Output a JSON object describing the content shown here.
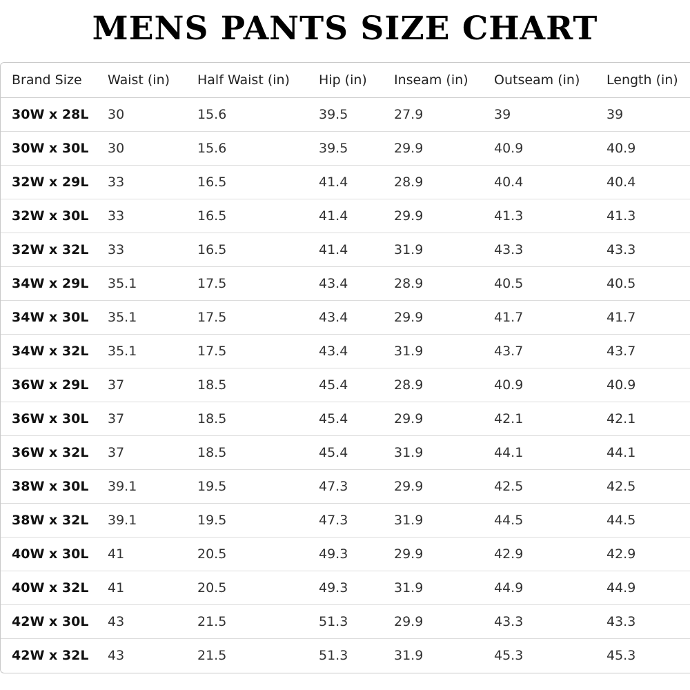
{
  "title": "MENS PANTS SIZE CHART",
  "table": {
    "headers": [
      "Brand Size",
      "Waist (in)",
      "Half Waist (in)",
      "Hip (in)",
      "Inseam (in)",
      "Outseam (in)",
      "Length (in)"
    ],
    "rows": [
      [
        "30W x 28L",
        "30",
        "15.6",
        "39.5",
        "27.9",
        "39",
        "39"
      ],
      [
        "30W x 30L",
        "30",
        "15.6",
        "39.5",
        "29.9",
        "40.9",
        "40.9"
      ],
      [
        "32W x 29L",
        "33",
        "16.5",
        "41.4",
        "28.9",
        "40.4",
        "40.4"
      ],
      [
        "32W x 30L",
        "33",
        "16.5",
        "41.4",
        "29.9",
        "41.3",
        "41.3"
      ],
      [
        "32W x 32L",
        "33",
        "16.5",
        "41.4",
        "31.9",
        "43.3",
        "43.3"
      ],
      [
        "34W x 29L",
        "35.1",
        "17.5",
        "43.4",
        "28.9",
        "40.5",
        "40.5"
      ],
      [
        "34W x 30L",
        "35.1",
        "17.5",
        "43.4",
        "29.9",
        "41.7",
        "41.7"
      ],
      [
        "34W x 32L",
        "35.1",
        "17.5",
        "43.4",
        "31.9",
        "43.7",
        "43.7"
      ],
      [
        "36W x 29L",
        "37",
        "18.5",
        "45.4",
        "28.9",
        "40.9",
        "40.9"
      ],
      [
        "36W x 30L",
        "37",
        "18.5",
        "45.4",
        "29.9",
        "42.1",
        "42.1"
      ],
      [
        "36W x 32L",
        "37",
        "18.5",
        "45.4",
        "31.9",
        "44.1",
        "44.1"
      ],
      [
        "38W x 30L",
        "39.1",
        "19.5",
        "47.3",
        "29.9",
        "42.5",
        "42.5"
      ],
      [
        "38W x 32L",
        "39.1",
        "19.5",
        "47.3",
        "31.9",
        "44.5",
        "44.5"
      ],
      [
        "40W x 30L",
        "41",
        "20.5",
        "49.3",
        "29.9",
        "42.9",
        "42.9"
      ],
      [
        "40W x 32L",
        "41",
        "20.5",
        "49.3",
        "31.9",
        "44.9",
        "44.9"
      ],
      [
        "42W x 30L",
        "43",
        "21.5",
        "51.3",
        "29.9",
        "43.3",
        "43.3"
      ],
      [
        "42W x 32L",
        "43",
        "21.5",
        "51.3",
        "31.9",
        "45.3",
        "45.3"
      ]
    ]
  }
}
